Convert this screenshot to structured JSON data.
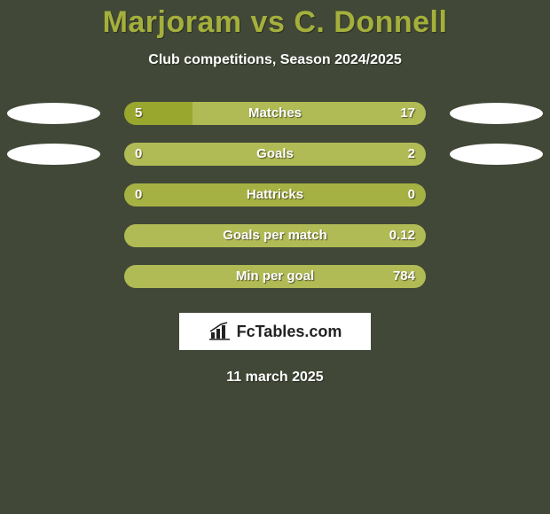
{
  "title": "Marjoram vs C. Donnell",
  "subtitle": "Club competitions, Season 2024/2025",
  "date": "11 march 2025",
  "colors": {
    "background": "#424837",
    "accent": "#a4b03b",
    "bar_left": "#9aa72f",
    "bar_right": "#b1bb55",
    "bar_neutral": "#a6b143",
    "ellipse_bg": "#ffffff",
    "text_white": "#ffffff"
  },
  "ellipse_rows": [
    0,
    1
  ],
  "bar_track_width": 340,
  "left_fill_color": "#9aa72f",
  "right_fill_color": "#b1bb55",
  "neutral_fill_color": "#a6b143",
  "rows": [
    {
      "label": "Matches",
      "left_val": "5",
      "right_val": "17",
      "left_pct": 22.7,
      "right_pct": 77.3
    },
    {
      "label": "Goals",
      "left_val": "0",
      "right_val": "2",
      "left_pct": 0.0,
      "right_pct": 100.0
    },
    {
      "label": "Hattricks",
      "left_val": "0",
      "right_val": "0",
      "left_pct": 50.0,
      "right_pct": 50.0,
      "neutral": true
    },
    {
      "label": "Goals per match",
      "left_val": "",
      "right_val": "0.12",
      "left_pct": 0.0,
      "right_pct": 100.0
    },
    {
      "label": "Min per goal",
      "left_val": "",
      "right_val": "784",
      "left_pct": 0.0,
      "right_pct": 100.0
    }
  ],
  "logo": {
    "text": "FcTables.com",
    "icon_name": "barchart-icon"
  }
}
